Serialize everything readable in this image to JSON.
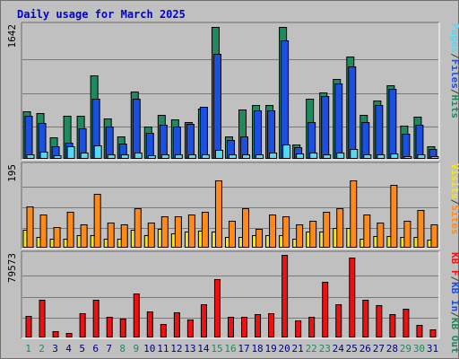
{
  "title": "Daily usage for March 2025",
  "colors": {
    "hits": "#1f8a5d",
    "files": "#1a4fe0",
    "pages": "#55d8f0",
    "visits": "#f5e51b",
    "sites": "#ff8a1a",
    "kbin": "#1a4fe0",
    "kbout": "#1f8a5d",
    "kbf": "#ee1111",
    "panel": "#c0c0c0",
    "grid": "#7a7a7a"
  },
  "right_labels": {
    "panel1": [
      {
        "text": "Pages",
        "color": "#55d8f0"
      },
      {
        "text": "/",
        "color": "#404040"
      },
      {
        "text": "Files",
        "color": "#1a4fe0"
      },
      {
        "text": "/",
        "color": "#404040"
      },
      {
        "text": "Hits",
        "color": "#1f8a5d"
      }
    ],
    "panel2": [
      {
        "text": "Visits",
        "color": "#f5e51b"
      },
      {
        "text": "/",
        "color": "#404040"
      },
      {
        "text": "Sites",
        "color": "#ff8a1a"
      }
    ],
    "panel3": [
      {
        "text": "KB F",
        "color": "#ee1111"
      },
      {
        "text": "/",
        "color": "#404040"
      },
      {
        "text": "KB In",
        "color": "#1a4fe0"
      },
      {
        "text": "/",
        "color": "#404040"
      },
      {
        "text": "KB Out",
        "color": "#1f8a5d"
      }
    ]
  },
  "chart_data": [
    {
      "type": "bar",
      "ymax_label": "1642",
      "ylim": [
        0,
        1642
      ],
      "categories": [
        "1",
        "2",
        "3",
        "4",
        "5",
        "6",
        "7",
        "8",
        "9",
        "10",
        "11",
        "12",
        "13",
        "14",
        "15",
        "16",
        "17",
        "18",
        "19",
        "20",
        "21",
        "22",
        "23",
        "24",
        "25",
        "26",
        "27",
        "28",
        "29",
        "30",
        "31"
      ],
      "weekend_days": [
        "1",
        "2",
        "8",
        "9",
        "15",
        "16",
        "22",
        "23",
        "29",
        "30"
      ],
      "series": [
        {
          "name": "Hits",
          "values": [
            590,
            570,
            270,
            530,
            530,
            1030,
            500,
            280,
            830,
            400,
            540,
            490,
            450,
            620,
            1630,
            280,
            610,
            670,
            670,
            1630,
            180,
            740,
            820,
            990,
            1260,
            540,
            720,
            910,
            410,
            520,
            160
          ]
        },
        {
          "name": "Files",
          "values": [
            530,
            440,
            160,
            200,
            380,
            740,
            400,
            190,
            740,
            320,
            420,
            400,
            430,
            640,
            1300,
            230,
            280,
            600,
            600,
            1470,
            140,
            460,
            780,
            930,
            1140,
            460,
            670,
            860,
            310,
            420,
            120
          ]
        },
        {
          "name": "Pages",
          "values": [
            60,
            90,
            40,
            160,
            80,
            170,
            50,
            60,
            80,
            40,
            60,
            50,
            60,
            60,
            110,
            60,
            60,
            60,
            80,
            180,
            70,
            80,
            60,
            80,
            120,
            50,
            60,
            70,
            30,
            50,
            30
          ]
        }
      ]
    },
    {
      "type": "bar",
      "ymax_label": "195",
      "ylim": [
        0,
        195
      ],
      "series": [
        {
          "name": "Visits",
          "values": [
            42,
            25,
            22,
            22,
            30,
            30,
            22,
            22,
            42,
            30,
            45,
            35,
            38,
            40,
            38,
            25,
            25,
            30,
            30,
            30,
            22,
            38,
            38,
            48,
            48,
            22,
            28,
            28,
            25,
            25,
            20
          ]
        },
        {
          "name": "Sites",
          "values": [
            98,
            80,
            50,
            85,
            55,
            128,
            60,
            55,
            95,
            60,
            75,
            75,
            80,
            85,
            160,
            65,
            95,
            45,
            80,
            75,
            55,
            65,
            85,
            95,
            160,
            80,
            60,
            150,
            65,
            90,
            55
          ]
        }
      ]
    },
    {
      "type": "bar",
      "ymax_label": "79573",
      "ylim": [
        0,
        79573
      ],
      "series": [
        {
          "name": "KB F",
          "values": [
            20600,
            36000,
            6200,
            4200,
            23700,
            36000,
            20000,
            17800,
            42000,
            24800,
            13000,
            23900,
            17200,
            32100,
            55900,
            20000,
            20000,
            22600,
            23700,
            79200,
            16700,
            20000,
            53300,
            31800,
            77400,
            36000,
            31400,
            22600,
            28000,
            12000,
            7600
          ]
        }
      ]
    }
  ]
}
